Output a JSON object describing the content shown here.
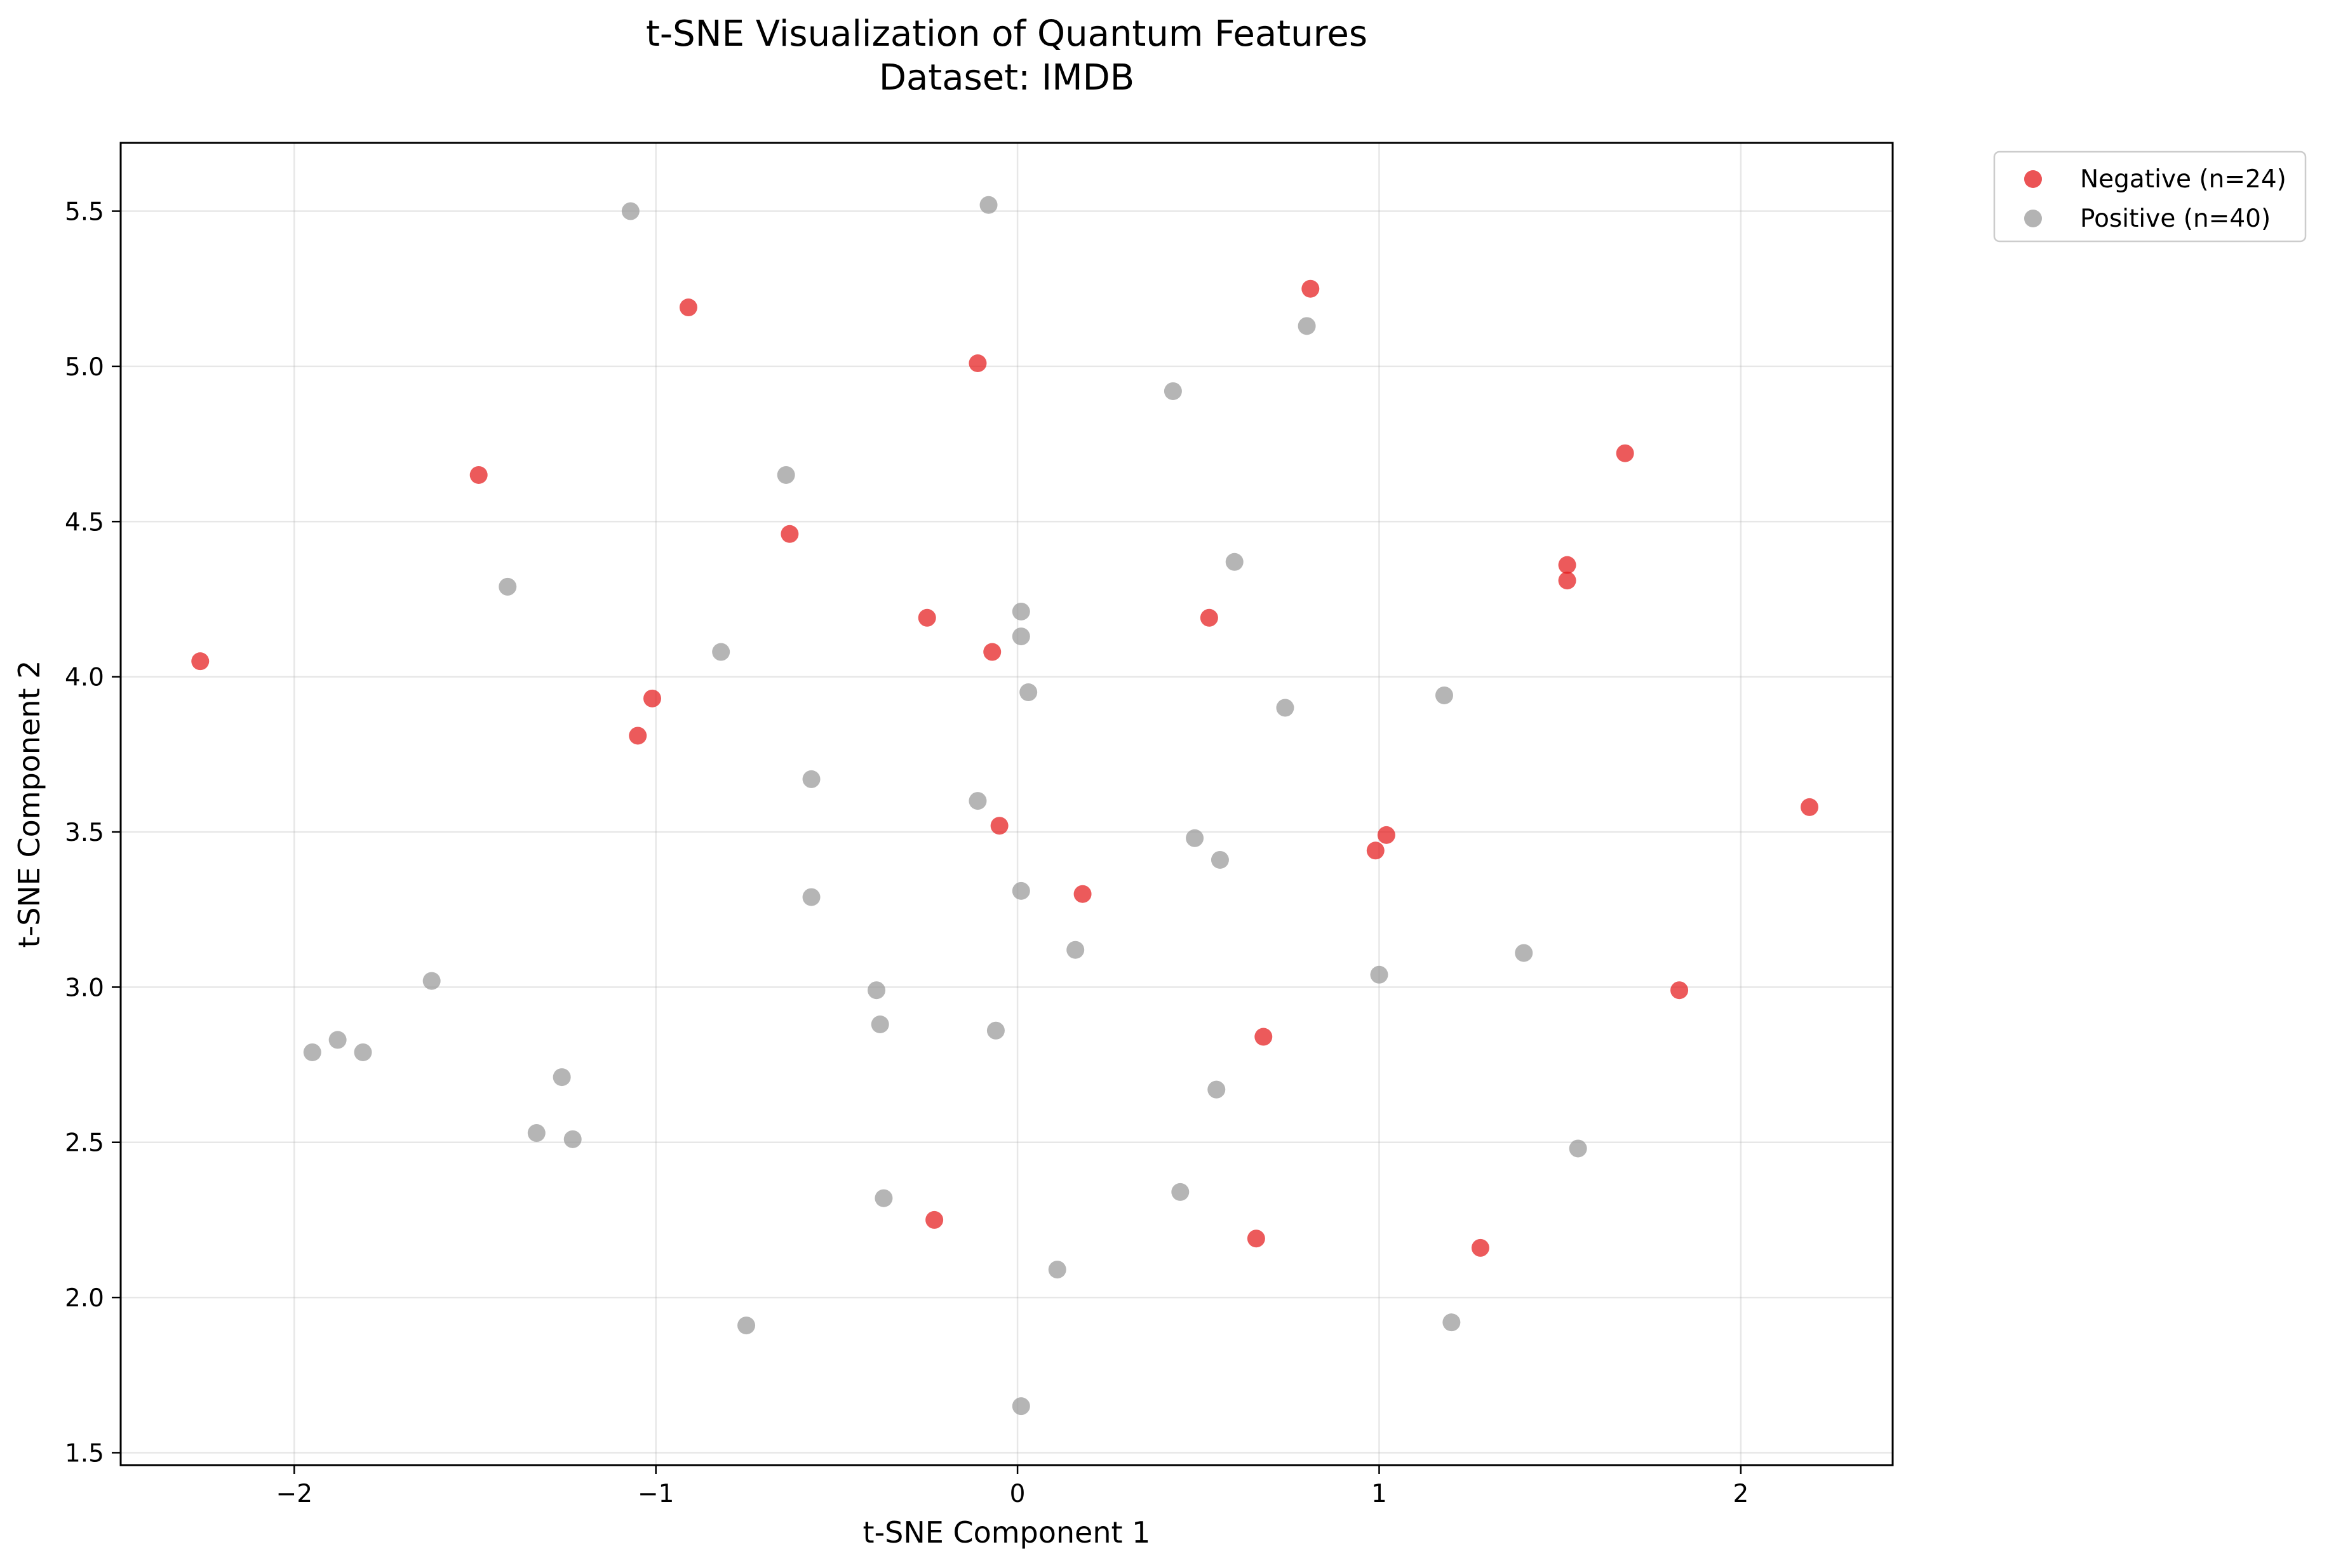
{
  "chart_data": {
    "type": "scatter",
    "title": "t-SNE Visualization of Quantum Features",
    "subtitle": "Dataset: IMDB",
    "xlabel": "t-SNE Component 1",
    "ylabel": "t-SNE Component 2",
    "xlim": [
      -2.48,
      2.42
    ],
    "ylim": [
      1.46,
      5.72
    ],
    "xticks": [
      -2,
      -1,
      0,
      1,
      2
    ],
    "xtick_labels": [
      "−2",
      "−1",
      "0",
      "1",
      "2"
    ],
    "yticks": [
      1.5,
      2.0,
      2.5,
      3.0,
      3.5,
      4.0,
      4.5,
      5.0,
      5.5
    ],
    "ytick_labels": [
      "1.5",
      "2.0",
      "2.5",
      "3.0",
      "3.5",
      "4.0",
      "4.5",
      "5.0",
      "5.5"
    ],
    "grid": true,
    "legend_position": "outside top-right",
    "series": [
      {
        "name": "Negative (n=24)",
        "color": "#e41a1c",
        "points": [
          [
            -2.26,
            4.05
          ],
          [
            -1.49,
            4.65
          ],
          [
            -0.91,
            5.19
          ],
          [
            -1.01,
            3.93
          ],
          [
            -1.05,
            3.81
          ],
          [
            -0.63,
            4.46
          ],
          [
            -0.25,
            4.19
          ],
          [
            -0.11,
            5.01
          ],
          [
            -0.07,
            4.08
          ],
          [
            -0.05,
            3.52
          ],
          [
            0.18,
            3.3
          ],
          [
            -0.23,
            2.25
          ],
          [
            0.53,
            4.19
          ],
          [
            0.81,
            5.25
          ],
          [
            1.68,
            4.72
          ],
          [
            1.52,
            4.36
          ],
          [
            1.52,
            4.31
          ],
          [
            1.02,
            3.49
          ],
          [
            0.99,
            3.44
          ],
          [
            2.19,
            3.58
          ],
          [
            1.83,
            2.99
          ],
          [
            0.68,
            2.84
          ],
          [
            0.66,
            2.19
          ],
          [
            1.28,
            2.16
          ]
        ]
      },
      {
        "name": "Positive (n=40)",
        "color": "#999999",
        "points": [
          [
            -1.07,
            5.5
          ],
          [
            -0.08,
            5.52
          ],
          [
            0.8,
            5.13
          ],
          [
            0.43,
            4.92
          ],
          [
            -0.64,
            4.65
          ],
          [
            -1.41,
            4.29
          ],
          [
            0.6,
            4.37
          ],
          [
            0.01,
            4.21
          ],
          [
            0.01,
            4.13
          ],
          [
            -0.82,
            4.08
          ],
          [
            0.03,
            3.95
          ],
          [
            0.74,
            3.9
          ],
          [
            1.18,
            3.94
          ],
          [
            -0.57,
            3.67
          ],
          [
            -0.11,
            3.6
          ],
          [
            0.49,
            3.48
          ],
          [
            0.56,
            3.41
          ],
          [
            -0.57,
            3.29
          ],
          [
            0.01,
            3.31
          ],
          [
            0.16,
            3.12
          ],
          [
            1.0,
            3.04
          ],
          [
            1.4,
            3.11
          ],
          [
            -1.62,
            3.02
          ],
          [
            -0.39,
            2.99
          ],
          [
            -0.38,
            2.88
          ],
          [
            -0.06,
            2.86
          ],
          [
            -1.88,
            2.83
          ],
          [
            -1.95,
            2.79
          ],
          [
            -1.81,
            2.79
          ],
          [
            -1.26,
            2.71
          ],
          [
            0.55,
            2.67
          ],
          [
            -1.33,
            2.53
          ],
          [
            -1.23,
            2.51
          ],
          [
            1.55,
            2.48
          ],
          [
            -0.37,
            2.32
          ],
          [
            0.45,
            2.34
          ],
          [
            0.11,
            2.09
          ],
          [
            -0.75,
            1.91
          ],
          [
            1.2,
            1.92
          ],
          [
            0.01,
            1.65
          ]
        ]
      }
    ]
  }
}
